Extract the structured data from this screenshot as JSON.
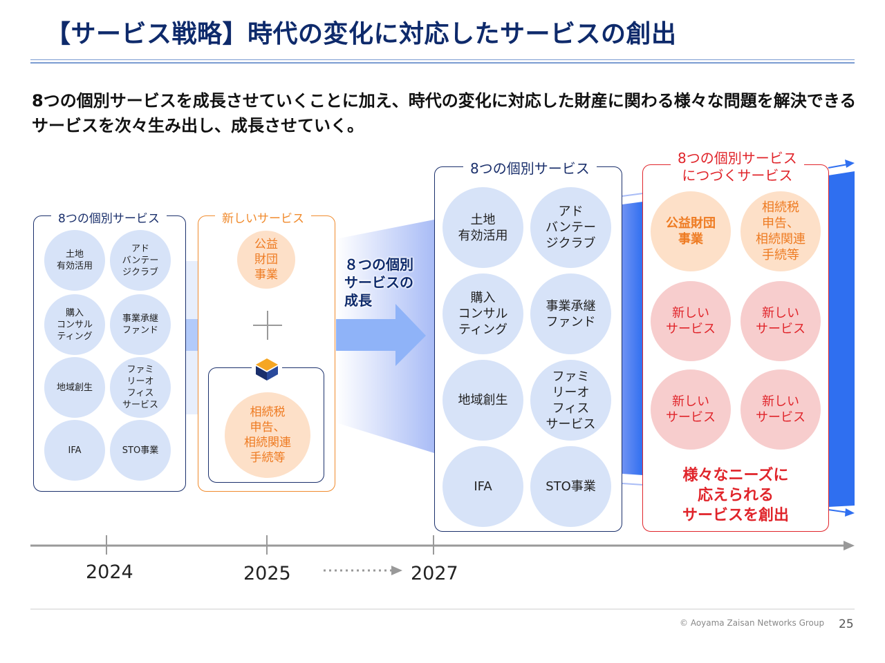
{
  "title": "【サービス戦略】時代の変化に対応したサービスの創出",
  "lead": "8つの個別サービスを成長させていくことに加え、時代の変化に対応した財産に関わる様々な問題を解決できるサービスを次々生み出し、成長させていく。",
  "col2024": {
    "label": "8つの個別サービス",
    "services": [
      "土地\n有効活用",
      "アド\nバンテー\nジクラブ",
      "購入\nコンサル\nティング",
      "事業承継\nファンド",
      "地域創生",
      "ファミ\nリーオ\nフィス\nサービス",
      "IFA",
      "STO事業"
    ]
  },
  "col2025": {
    "label": "新しいサービス",
    "top_service": "公益\n財団\n事業",
    "plus": "+",
    "bottom_service": "相続税\n申告、\n相続関連\n手続等"
  },
  "growth_label": "８つの個別\nサービスの\n成長",
  "col2027": {
    "label": "8つの個別サービス",
    "services": [
      "土地\n有効活用",
      "アド\nバンテー\nジクラブ",
      "購入\nコンサル\nティング",
      "事業承継\nファンド",
      "地域創生",
      "ファミ\nリーオ\nフィス\nサービス",
      "IFA",
      "STO事業"
    ]
  },
  "col_next": {
    "label": "8つの個別サービス\nにつづくサービス",
    "services": [
      "公益財団\n事業",
      "相続税\n申告、\n相続関連\n手続等",
      "新しい\nサービス",
      "新しい\nサービス",
      "新しい\nサービス",
      "新しい\nサービス"
    ],
    "caption": "様々なニーズに\n応えられる\nサービスを創出"
  },
  "timeline": {
    "years": [
      "2024",
      "2025",
      "2027"
    ]
  },
  "footer": {
    "copyright": "© Aoyama Zaisan Networks Group",
    "page": "25"
  },
  "colors": {
    "navy": "#0e2a6b",
    "blue_light": "#d7e3f8",
    "orange": "#f08a2c",
    "red": "#e0242a",
    "arrow_blue": "#2f6ff0"
  }
}
